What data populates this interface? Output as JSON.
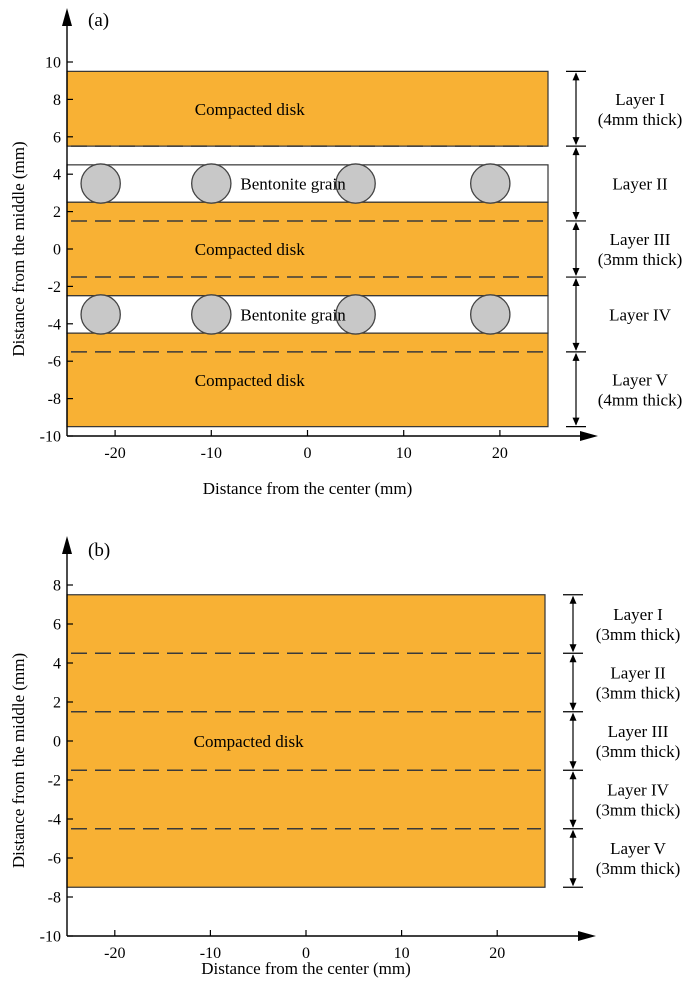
{
  "panels": [
    {
      "label": "(a)",
      "ylabel": "Distance from the middle (mm)",
      "xlabel": "Distance from the center (mm)",
      "xticks": [
        -20,
        -10,
        0,
        10,
        20
      ],
      "yticks": [
        10,
        8,
        6,
        4,
        2,
        0,
        -2,
        -4,
        -6,
        -8,
        -10
      ],
      "xlim": [
        -25,
        25
      ],
      "ylim": [
        -10,
        10
      ],
      "colors": {
        "disk": "#f8b134",
        "grain": "#c8c8c8",
        "border": "#333333"
      },
      "regions": [
        {
          "kind": "disk",
          "label": "Compacted disk",
          "y0": 5.5,
          "y1": 9.5
        },
        {
          "kind": "grain-band",
          "label": "Bentonite grain",
          "y0": 2.5,
          "y1": 4.5
        },
        {
          "kind": "disk",
          "label": "Compacted disk",
          "y0": -2.5,
          "y1": 2.5
        },
        {
          "kind": "grain-band",
          "label": "Bentonite grain",
          "y0": -4.5,
          "y1": -2.5
        },
        {
          "kind": "disk",
          "label": "Compacted disk",
          "y0": -9.5,
          "y1": -4.5
        }
      ],
      "disk_tops": [
        9.5,
        2.5,
        -4.5
      ],
      "dashed_lines": [
        5.5,
        1.5,
        -1.5,
        -5.5
      ],
      "grains": [
        {
          "x": -21.5,
          "y": 3.5
        },
        {
          "x": -10,
          "y": 3.5
        },
        {
          "x": 5,
          "y": 3.5
        },
        {
          "x": 19,
          "y": 3.5
        },
        {
          "x": -21.5,
          "y": -3.5
        },
        {
          "x": -10,
          "y": -3.5
        },
        {
          "x": 5,
          "y": -3.5
        },
        {
          "x": 19,
          "y": -3.5
        }
      ],
      "layers": [
        {
          "lines": [
            "Layer I",
            "(4mm thick)"
          ],
          "y0": 5.5,
          "y1": 9.5
        },
        {
          "lines": [
            "Layer II"
          ],
          "y0": 1.5,
          "y1": 5.5
        },
        {
          "lines": [
            "Layer III",
            "(3mm thick)"
          ],
          "y0": -1.5,
          "y1": 1.5
        },
        {
          "lines": [
            "Layer IV"
          ],
          "y0": -5.5,
          "y1": -1.5
        },
        {
          "lines": [
            "Layer V",
            "(4mm thick)"
          ],
          "y0": -9.5,
          "y1": -5.5
        }
      ]
    },
    {
      "label": "(b)",
      "ylabel": "Distance from the middle (mm)",
      "xlabel": "Distance from the center (mm)",
      "xticks": [
        -20,
        -10,
        0,
        10,
        20
      ],
      "yticks": [
        8,
        6,
        4,
        2,
        0,
        -2,
        -4,
        -6,
        -8,
        -10
      ],
      "xlim": [
        -25,
        25
      ],
      "ylim": [
        -10,
        8
      ],
      "colors": {
        "disk": "#f8b134",
        "border": "#333333"
      },
      "regions": [
        {
          "kind": "disk",
          "label": "Compacted disk",
          "y0": -7.5,
          "y1": 7.5
        }
      ],
      "disk_tops": [
        7.5
      ],
      "dashed_lines": [
        4.5,
        1.5,
        -1.5,
        -4.5
      ],
      "grains": [],
      "layers": [
        {
          "lines": [
            "Layer I",
            "(3mm thick)"
          ],
          "y0": 4.5,
          "y1": 7.5
        },
        {
          "lines": [
            "Layer II",
            "(3mm thick)"
          ],
          "y0": 1.5,
          "y1": 4.5
        },
        {
          "lines": [
            "Layer III",
            "(3mm thick)"
          ],
          "y0": -1.5,
          "y1": 1.5
        },
        {
          "lines": [
            "Layer IV",
            "(3mm thick)"
          ],
          "y0": -4.5,
          "y1": -1.5
        },
        {
          "lines": [
            "Layer V",
            "(3mm thick)"
          ],
          "y0": -7.5,
          "y1": -4.5
        }
      ]
    }
  ]
}
